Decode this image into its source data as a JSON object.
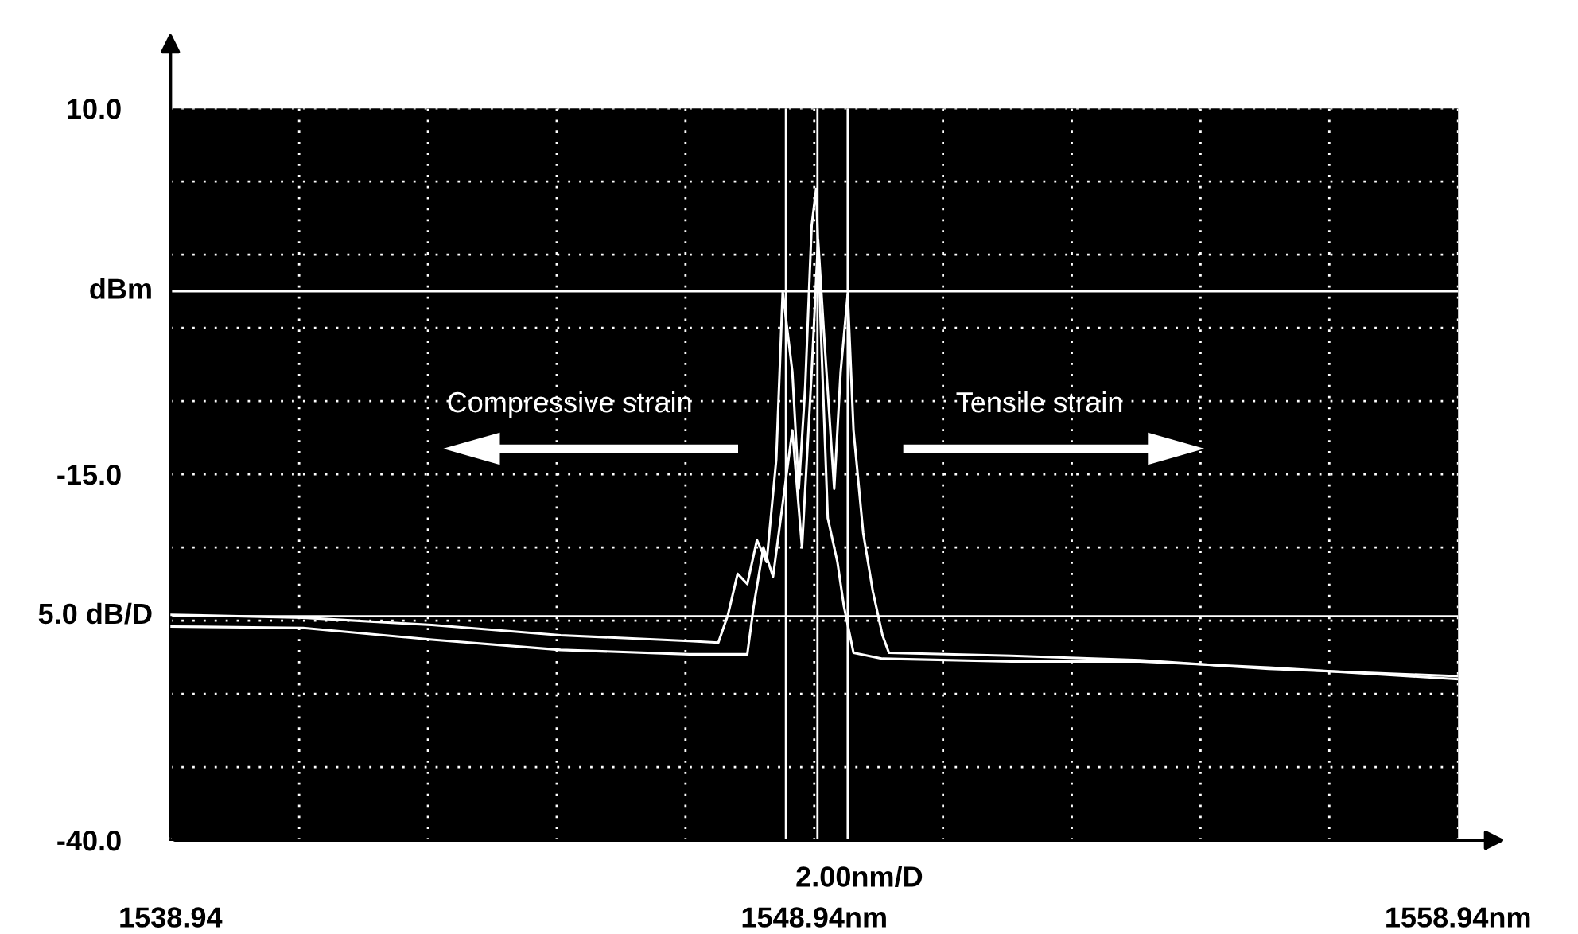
{
  "chart_data": {
    "type": "line",
    "xlim": [
      1538.94,
      1558.94
    ],
    "ylim": [
      -40,
      10
    ],
    "xticks": [
      {
        "value": 1538.94,
        "label": "1538.94"
      },
      {
        "value": 1540.94,
        "label": null
      },
      {
        "value": 1542.94,
        "label": null
      },
      {
        "value": 1544.94,
        "label": null
      },
      {
        "value": 1546.94,
        "label": null
      },
      {
        "value": 1548.94,
        "label": "1548.94nm"
      },
      {
        "value": 1550.94,
        "label": null
      },
      {
        "value": 1552.94,
        "label": null
      },
      {
        "value": 1554.94,
        "label": null
      },
      {
        "value": 1556.94,
        "label": null
      },
      {
        "value": 1558.94,
        "label": "1558.94nm"
      }
    ],
    "yticks": [
      {
        "value": 10,
        "label": "10.0"
      },
      {
        "value": 5,
        "label": null
      },
      {
        "value": 0,
        "label": null
      },
      {
        "value": -5,
        "label": null
      },
      {
        "value": -10,
        "label": null
      },
      {
        "value": -15,
        "label": "-15.0"
      },
      {
        "value": -20,
        "label": null
      },
      {
        "value": -25,
        "label": null
      },
      {
        "value": -30,
        "label": null
      },
      {
        "value": -35,
        "label": null
      },
      {
        "value": -40,
        "label": "-40.0"
      }
    ],
    "grid": true,
    "marker": "none",
    "line_style": "solid",
    "series": [
      {
        "color": "#ffffff",
        "x": [
          1538.94,
          1541.0,
          1543.0,
          1545.0,
          1547.0,
          1547.45,
          1547.6,
          1547.75,
          1547.9,
          1548.05,
          1548.2,
          1548.35,
          1548.45,
          1548.6,
          1548.7,
          1548.8,
          1548.9,
          1548.97,
          1549.05,
          1549.15,
          1549.3,
          1549.4,
          1549.55,
          1550.0,
          1552.0,
          1554.0,
          1556.0,
          1558.94
        ],
        "values": [
          -24.6,
          -24.8,
          -25.3,
          -26.0,
          -26.4,
          -26.5,
          -24.6,
          -21.8,
          -22.5,
          -19.5,
          -21,
          -14,
          -2.5,
          -8,
          -16,
          -9,
          2,
          4.5,
          -6,
          -18,
          -21,
          -24,
          -27.2,
          -27.6,
          -27.8,
          -27.8,
          -28.2,
          -29.0
        ]
      },
      {
        "color": "#ffffff",
        "x": [
          1538.94,
          1541.0,
          1543.0,
          1545.0,
          1547.0,
          1547.9,
          1548.0,
          1548.15,
          1548.3,
          1548.45,
          1548.6,
          1548.75,
          1548.9,
          1549.0,
          1549.1,
          1549.25,
          1549.35,
          1549.46,
          1549.55,
          1549.7,
          1549.85,
          1550.0,
          1550.1,
          1552.0,
          1554.0,
          1556.0,
          1558.94
        ],
        "values": [
          -25.4,
          -25.5,
          -26.3,
          -27.0,
          -27.3,
          -27.3,
          -24,
          -20,
          -22,
          -17,
          -12,
          -20,
          -8,
          1,
          -6,
          -16,
          -8,
          -2.7,
          -12,
          -19,
          -23,
          -26,
          -27.2,
          -27.4,
          -27.7,
          -28.3,
          -28.8
        ]
      }
    ],
    "ref_lines": [
      {
        "axis": "y",
        "value": -2.5,
        "color": "#ffffff",
        "label": "dBm"
      },
      {
        "axis": "y",
        "value": -24.7,
        "color": "#ffffff",
        "label": "5.0 dB/D"
      },
      {
        "axis": "x",
        "value": 1548.5,
        "color": "#ffffff"
      },
      {
        "axis": "x",
        "value": 1548.99,
        "color": "#ffffff"
      },
      {
        "axis": "x",
        "value": 1549.46,
        "color": "#ffffff"
      }
    ],
    "annotations": [
      "2.00nm/D",
      "Compressive strain",
      "Tensile strain"
    ]
  }
}
